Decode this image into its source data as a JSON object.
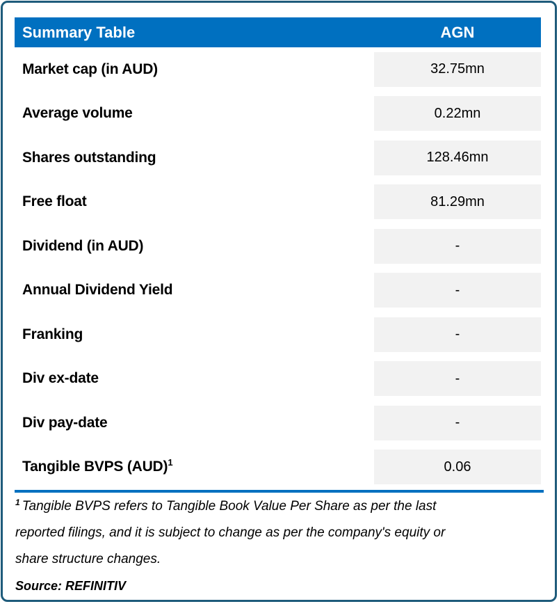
{
  "table": {
    "header": {
      "title": "Summary Table",
      "ticker": "AGN"
    },
    "rows": [
      {
        "label": "Market cap (in AUD)",
        "sup": "",
        "value": "32.75mn"
      },
      {
        "label": "Average volume",
        "sup": "",
        "value": "0.22mn"
      },
      {
        "label": "Shares outstanding",
        "sup": "",
        "value": "128.46mn"
      },
      {
        "label": "Free float",
        "sup": "",
        "value": "81.29mn"
      },
      {
        "label": "Dividend (in AUD)",
        "sup": "",
        "value": "-"
      },
      {
        "label": "Annual Dividend Yield",
        "sup": "",
        "value": "-"
      },
      {
        "label": "Franking",
        "sup": "",
        "value": "-"
      },
      {
        "label": "Div ex-date",
        "sup": "",
        "value": "-"
      },
      {
        "label": "Div pay-date",
        "sup": "",
        "value": "-"
      },
      {
        "label": "Tangible BVPS (AUD)",
        "sup": "1",
        "value": "0.06"
      }
    ]
  },
  "footnote": {
    "superscript": "1",
    "lines": [
      "Tangible BVPS refers to Tangible Book Value Per Share as per the last",
      "reported filings, and it is subject to change as per the company's equity or",
      "share structure changes."
    ]
  },
  "source": "Source: REFINITIV",
  "colors": {
    "header_bg": "#0070C0",
    "frame_border": "#1E5B7B",
    "value_cell_bg": "#F2F2F2",
    "bottom_rule": "#0070C0",
    "header_text": "#FFFFFF",
    "body_text": "#000000"
  }
}
